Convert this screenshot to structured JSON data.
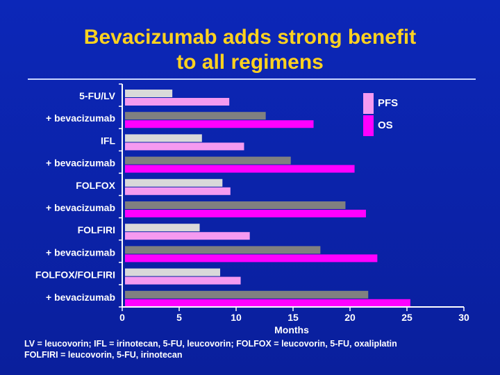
{
  "slide": {
    "title_line1": "Bevacizumab adds strong benefit",
    "title_line2": "to all regimens",
    "footnote_line1": "LV = leucovorin; IFL = irinotecan, 5-FU, leucovorin; FOLFOX = leucovorin, 5-FU, oxaliplatin",
    "footnote_line2": "FOLFIRI = leucovorin, 5-FU, irinotecan"
  },
  "colors": {
    "background": "#0a1f9c",
    "title": "#ffd21f",
    "pfs_control": "#d9d9d9",
    "pfs_bev": "#808080",
    "os_control": "#f59af0",
    "os_bev": "#ff00ff"
  },
  "chart_data": {
    "type": "bar",
    "orientation": "horizontal",
    "title": "",
    "xlabel": "Months",
    "ylabel": "",
    "xlim": [
      0,
      30
    ],
    "xticks": [
      0,
      5,
      10,
      15,
      20,
      25,
      30
    ],
    "grid": false,
    "legend": {
      "position": "top-right",
      "entries": [
        "PFS",
        "OS"
      ]
    },
    "categories": [
      "5-FU/LV",
      "+ bevacizumab",
      "IFL",
      "+ bevacizumab",
      "FOLFOX",
      "+ bevacizumab",
      "FOLFIRI",
      "+ bevacizumab",
      "FOLFOX/FOLFIRI",
      "+ bevacizumab"
    ],
    "series": [
      {
        "name": "PFS",
        "values": [
          4.4,
          12.6,
          7.0,
          14.8,
          8.8,
          19.6,
          6.8,
          17.4,
          8.6,
          21.6
        ]
      },
      {
        "name": "OS",
        "values": [
          9.4,
          16.8,
          10.7,
          20.4,
          9.5,
          21.4,
          11.2,
          22.4,
          10.4,
          25.3
        ]
      }
    ]
  }
}
